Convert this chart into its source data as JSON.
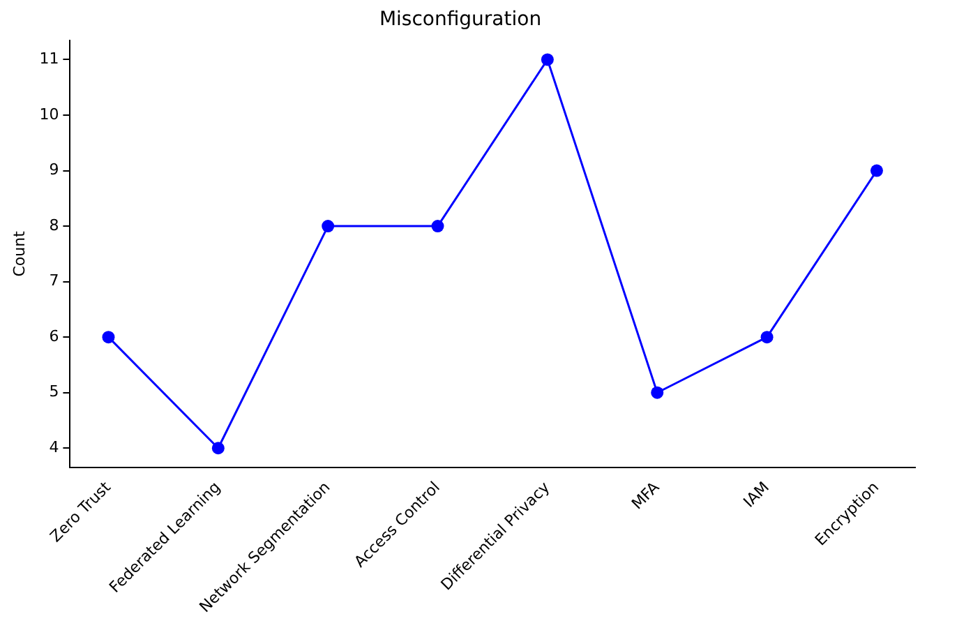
{
  "chart_data": {
    "type": "line",
    "title": "Misconfiguration",
    "ylabel": "Count",
    "categories": [
      "Zero Trust",
      "Federated Learning",
      "Network Segmentation",
      "Access Control",
      "Differential Privacy",
      "MFA",
      "IAM",
      "Encryption"
    ],
    "series": [
      {
        "color": "#0000ff",
        "values": [
          6,
          4,
          8,
          8,
          11,
          5,
          6,
          9
        ]
      }
    ],
    "ylim": [
      3.65,
      11.35
    ],
    "yticks": [
      4,
      5,
      6,
      7,
      8,
      9,
      10,
      11
    ],
    "grid": false,
    "legend": false,
    "marker": "circle",
    "line_style": "solid"
  }
}
